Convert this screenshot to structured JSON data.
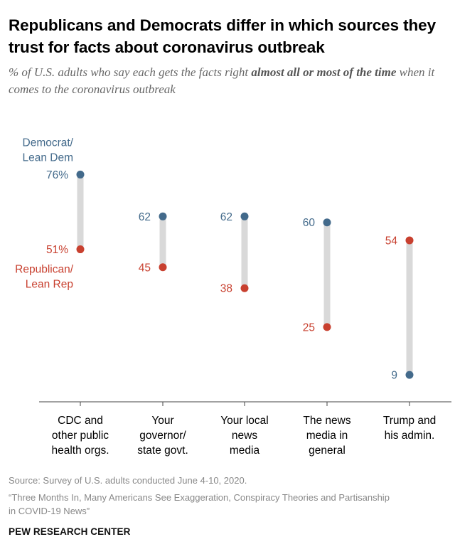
{
  "title": "Republicans and Democrats differ in which sources they trust for facts about coronavirus outbreak",
  "subtitle": {
    "pre": "% of U.S. adults who say each gets the facts right ",
    "bold": "almost all or most of the time",
    "post": " when it comes to the coronavirus outbreak"
  },
  "chart_data": {
    "type": "dot-range",
    "categories": [
      [
        "CDC and",
        "other public",
        "health orgs."
      ],
      [
        "Your",
        "governor/",
        "state govt."
      ],
      [
        "Your local",
        "news",
        "media"
      ],
      [
        "The news",
        "media in",
        "general"
      ],
      [
        "Trump and",
        "his admin."
      ]
    ],
    "series": [
      {
        "name": "Democrat/ Lean Dem",
        "legend_lines": [
          "Democrat/",
          "Lean Dem"
        ],
        "color": "#436A8B",
        "values": [
          76,
          62,
          62,
          60,
          9
        ],
        "labels": [
          "76%",
          "62",
          "62",
          "60",
          "9"
        ]
      },
      {
        "name": "Republican/ Lean Rep",
        "legend_lines": [
          "Republican/",
          "Lean Rep"
        ],
        "color": "#C8402F",
        "values": [
          51,
          45,
          38,
          25,
          54
        ],
        "labels": [
          "51%",
          "45",
          "38",
          "25",
          "54"
        ]
      }
    ],
    "ylim": [
      0,
      83
    ],
    "connector_color": "#D9D9D9"
  },
  "footer": {
    "source": "Source: Survey of U.S. adults conducted June 4-10, 2020.",
    "report_line1": "“Three Months In, Many Americans See Exaggeration, Conspiracy Theories and Partisanship",
    "report_line2": "in COVID-19 News”"
  },
  "brand": "PEW RESEARCH CENTER"
}
